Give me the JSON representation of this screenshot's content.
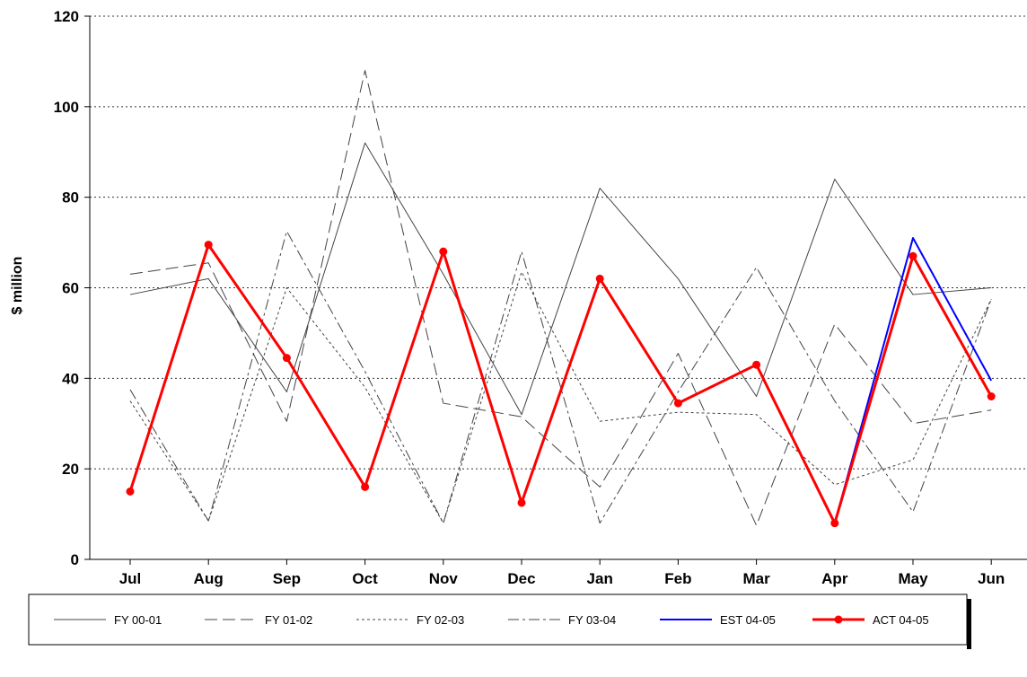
{
  "chart_data": {
    "type": "line",
    "title": "",
    "xlabel": "",
    "ylabel": "$ million",
    "ylim": [
      0,
      120
    ],
    "yticks": [
      0,
      20,
      40,
      60,
      80,
      100,
      120
    ],
    "grid": "horizontal-dotted",
    "legend_position": "bottom",
    "categories": [
      "Jul",
      "Aug",
      "Sep",
      "Oct",
      "Nov",
      "Dec",
      "Jan",
      "Feb",
      "Mar",
      "Apr",
      "May",
      "Jun"
    ],
    "series": [
      {
        "name": "FY 00-01",
        "style": "solid",
        "color": "#444444",
        "values": [
          58.5,
          62,
          37,
          92,
          63,
          32,
          82,
          62,
          36,
          84,
          58.5,
          60
        ]
      },
      {
        "name": "FY 01-02",
        "style": "dashed",
        "color": "#444444",
        "values": [
          63,
          65.5,
          30.5,
          108,
          34.5,
          31.5,
          16,
          45.5,
          7.5,
          52,
          30,
          33
        ]
      },
      {
        "name": "FY 02-03",
        "style": "dotted",
        "color": "#444444",
        "values": [
          35,
          8.5,
          60,
          38,
          8,
          63.5,
          30.5,
          32.5,
          32,
          16.5,
          22,
          57.5
        ]
      },
      {
        "name": "FY 03-04",
        "style": "dashdot",
        "color": "#444444",
        "values": [
          37.5,
          8.5,
          72.5,
          41.5,
          8,
          68,
          8,
          37,
          64.5,
          35,
          10.5,
          57.5
        ]
      },
      {
        "name": "EST 04-05",
        "style": "solid",
        "color": "#0000ff",
        "values": [
          null,
          null,
          null,
          null,
          null,
          null,
          null,
          null,
          null,
          8,
          71,
          39.5
        ]
      },
      {
        "name": "ACT 04-05",
        "style": "solid-marker",
        "color": "#ff0000",
        "values": [
          15,
          69.5,
          44.5,
          16,
          68,
          12.5,
          62,
          34.5,
          43,
          8,
          67,
          36
        ]
      }
    ]
  }
}
